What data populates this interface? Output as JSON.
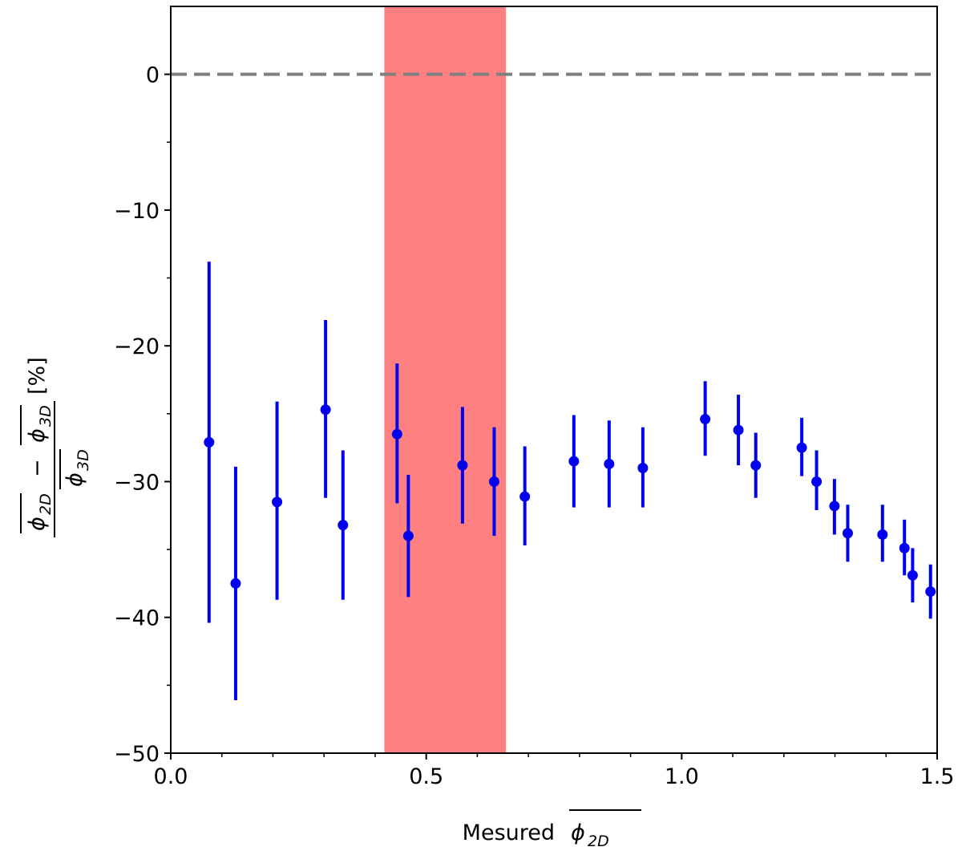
{
  "chart_data": {
    "type": "scatter",
    "xlabel": "Mesured",
    "xlabel_symbol": "ϕ",
    "xlabel_sub": "2D",
    "ylabel_unit": "[%]",
    "ylabel_num_a": "ϕ",
    "ylabel_num_a_sub": "2D",
    "ylabel_minus": "−",
    "ylabel_num_b": "ϕ",
    "ylabel_num_b_sub": "3D",
    "ylabel_den": "ϕ",
    "ylabel_den_sub": "3D",
    "xlim": [
      0.0,
      1.5
    ],
    "ylim": [
      -50,
      5
    ],
    "xticks": [
      0.0,
      0.5,
      1.0,
      1.5
    ],
    "xtick_labels": [
      "0.0",
      "0.5",
      "1.0",
      "1.5"
    ],
    "yticks": [
      0,
      -10,
      -20,
      -30,
      -40,
      -50
    ],
    "ytick_labels": [
      "0",
      "−10",
      "−20",
      "−30",
      "−40",
      "−50"
    ],
    "reference_line_y": 0,
    "highlight_band": {
      "x0": 0.418,
      "x1": 0.656,
      "color": "#ff8080"
    },
    "series_color": "#0000ee",
    "ref_line_color": "#808080",
    "points": [
      {
        "x": 0.075,
        "y": -27.1,
        "ylow": -40.4,
        "yhigh": -13.8
      },
      {
        "x": 0.127,
        "y": -37.5,
        "ylow": -46.1,
        "yhigh": -28.9
      },
      {
        "x": 0.208,
        "y": -31.5,
        "ylow": -38.7,
        "yhigh": -24.1
      },
      {
        "x": 0.303,
        "y": -24.7,
        "ylow": -31.2,
        "yhigh": -18.1
      },
      {
        "x": 0.337,
        "y": -33.2,
        "ylow": -38.7,
        "yhigh": -27.7
      },
      {
        "x": 0.443,
        "y": -26.5,
        "ylow": -31.6,
        "yhigh": -21.3
      },
      {
        "x": 0.465,
        "y": -34.0,
        "ylow": -38.5,
        "yhigh": -29.5
      },
      {
        "x": 0.571,
        "y": -28.8,
        "ylow": -33.1,
        "yhigh": -24.5
      },
      {
        "x": 0.633,
        "y": -30.0,
        "ylow": -34.0,
        "yhigh": -26.0
      },
      {
        "x": 0.693,
        "y": -31.1,
        "ylow": -34.7,
        "yhigh": -27.4
      },
      {
        "x": 0.789,
        "y": -28.5,
        "ylow": -31.9,
        "yhigh": -25.1
      },
      {
        "x": 0.858,
        "y": -28.7,
        "ylow": -31.9,
        "yhigh": -25.5
      },
      {
        "x": 0.924,
        "y": -29.0,
        "ylow": -31.9,
        "yhigh": -26.0
      },
      {
        "x": 1.046,
        "y": -25.4,
        "ylow": -28.1,
        "yhigh": -22.6
      },
      {
        "x": 1.111,
        "y": -26.2,
        "ylow": -28.8,
        "yhigh": -23.6
      },
      {
        "x": 1.145,
        "y": -28.8,
        "ylow": -31.2,
        "yhigh": -26.4
      },
      {
        "x": 1.235,
        "y": -27.5,
        "ylow": -29.6,
        "yhigh": -25.3
      },
      {
        "x": 1.264,
        "y": -30.0,
        "ylow": -32.1,
        "yhigh": -27.7
      },
      {
        "x": 1.299,
        "y": -31.8,
        "ylow": -33.9,
        "yhigh": -29.8
      },
      {
        "x": 1.325,
        "y": -33.8,
        "ylow": -35.9,
        "yhigh": -31.7
      },
      {
        "x": 1.393,
        "y": -33.9,
        "ylow": -35.9,
        "yhigh": -31.7
      },
      {
        "x": 1.436,
        "y": -34.9,
        "ylow": -36.9,
        "yhigh": -32.8
      },
      {
        "x": 1.452,
        "y": -36.9,
        "ylow": -38.9,
        "yhigh": -34.9
      },
      {
        "x": 1.487,
        "y": -38.1,
        "ylow": -40.1,
        "yhigh": -36.1
      }
    ]
  }
}
